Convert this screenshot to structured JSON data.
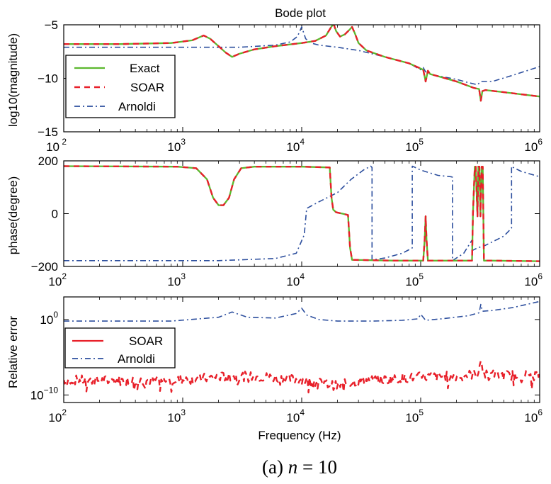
{
  "figure": {
    "caption_prefix": "(a)",
    "caption_var": "n",
    "caption_eq": "=",
    "caption_value": "10"
  },
  "colors": {
    "exact": "#5cb82e",
    "soar": "#e8202a",
    "arnoldi": "#2d4f9e",
    "axes": "#000000"
  },
  "chart_data": [
    {
      "type": "line",
      "title": "Bode plot",
      "xlabel": "",
      "ylabel": "log10(magnitude)",
      "x_scale": "log",
      "xlim": [
        100,
        1000000
      ],
      "ylim": [
        -15,
        -5
      ],
      "x_ticks": [
        {
          "value": 100,
          "base": "10",
          "exp": " 2"
        },
        {
          "value": 1000,
          "base": "10",
          "exp": "3"
        },
        {
          "value": 10000,
          "base": "10",
          "exp": "4"
        },
        {
          "value": 100000,
          "base": "10",
          "exp": "5"
        },
        {
          "value": 1000000,
          "base": "10",
          "exp": "6"
        }
      ],
      "y_ticks": [
        {
          "value": -5,
          "label": "−5"
        },
        {
          "value": -10,
          "label": "−10"
        },
        {
          "value": -15,
          "label": "−15"
        }
      ],
      "legend": {
        "position": "middle-left",
        "entries": [
          "Exact",
          "SOAR",
          "Arnoldi"
        ]
      },
      "series": [
        {
          "name": "Exact",
          "style": "solid",
          "x": [
            100,
            300,
            800,
            1200,
            1500,
            1700,
            2000,
            2300,
            2600,
            3000,
            4000,
            6000,
            10000,
            13000,
            16000,
            17500,
            18500,
            19500,
            21000,
            23000,
            25000,
            26500,
            28000,
            30000,
            35000,
            50000,
            80000,
            105000,
            110000,
            115000,
            120000,
            150000,
            200000,
            280000,
            310000,
            320000,
            330000,
            350000,
            500000,
            1000000
          ],
          "y": [
            -6.8,
            -6.8,
            -6.7,
            -6.45,
            -6.0,
            -6.3,
            -7.0,
            -7.6,
            -8.0,
            -7.7,
            -7.3,
            -7.0,
            -6.7,
            -6.5,
            -6.0,
            -5.3,
            -4.9,
            -5.6,
            -6.1,
            -5.9,
            -5.5,
            -5.2,
            -5.8,
            -6.7,
            -7.4,
            -8.0,
            -8.6,
            -9.2,
            -10.3,
            -9.3,
            -9.6,
            -9.9,
            -10.3,
            -10.9,
            -11.0,
            -12.1,
            -11.2,
            -11.1,
            -11.3,
            -11.7
          ]
        },
        {
          "name": "SOAR",
          "style": "dashed",
          "x": [
            100,
            300,
            800,
            1200,
            1500,
            1700,
            2000,
            2300,
            2600,
            3000,
            4000,
            6000,
            10000,
            13000,
            16000,
            17500,
            18500,
            19500,
            21000,
            23000,
            25000,
            26500,
            28000,
            30000,
            35000,
            50000,
            80000,
            105000,
            110000,
            115000,
            120000,
            150000,
            200000,
            280000,
            310000,
            320000,
            330000,
            350000,
            500000,
            1000000
          ],
          "y": [
            -6.8,
            -6.8,
            -6.7,
            -6.45,
            -6.0,
            -6.3,
            -7.0,
            -7.6,
            -8.0,
            -7.7,
            -7.3,
            -7.0,
            -6.7,
            -6.5,
            -6.0,
            -5.3,
            -4.9,
            -5.6,
            -6.1,
            -5.9,
            -5.5,
            -5.2,
            -5.8,
            -6.7,
            -7.4,
            -8.0,
            -8.6,
            -9.2,
            -10.3,
            -9.3,
            -9.6,
            -9.9,
            -10.3,
            -10.9,
            -11.0,
            -12.1,
            -11.2,
            -11.1,
            -11.3,
            -11.7
          ]
        },
        {
          "name": "Arnoldi",
          "style": "dashdot",
          "x": [
            100,
            1000,
            3000,
            6000,
            8000,
            9200,
            10000,
            10800,
            12000,
            14000,
            20000,
            30000,
            50000,
            80000,
            100000,
            105000,
            110000,
            130000,
            200000,
            250000,
            300000,
            320000,
            400000,
            600000,
            1000000
          ],
          "y": [
            -7.1,
            -7.1,
            -7.1,
            -6.9,
            -6.6,
            -6.1,
            -5.2,
            -6.3,
            -6.7,
            -6.9,
            -7.1,
            -7.4,
            -8.0,
            -8.6,
            -9.2,
            -9.0,
            -9.4,
            -9.7,
            -10.1,
            -10.4,
            -10.6,
            -10.3,
            -10.3,
            -9.7,
            -8.9
          ]
        }
      ]
    },
    {
      "type": "line",
      "title": "",
      "xlabel": "",
      "ylabel": "phase(degree)",
      "x_scale": "log",
      "xlim": [
        100,
        1000000
      ],
      "ylim": [
        -200,
        200
      ],
      "x_ticks": [
        {
          "value": 100,
          "base": "10",
          "exp": "2"
        },
        {
          "value": 1000,
          "base": "10",
          "exp": "3"
        },
        {
          "value": 10000,
          "base": "10",
          "exp": "4"
        },
        {
          "value": 100000,
          "base": "10",
          "exp": "5"
        },
        {
          "value": 1000000,
          "base": "10",
          "exp": "6"
        }
      ],
      "y_ticks": [
        {
          "value": 200,
          "label": "200"
        },
        {
          "value": 0,
          "label": "0"
        },
        {
          "value": -200,
          "label": "−200"
        }
      ],
      "series": [
        {
          "name": "Exact",
          "style": "solid",
          "x": [
            100,
            900,
            1300,
            1600,
            1800,
            2000,
            2200,
            2450,
            2700,
            3100,
            4000,
            10000,
            17200,
            17800,
            18400,
            19500,
            22000,
            24500,
            25500,
            26500,
            60000,
            105000,
            108000,
            110000,
            112000,
            115000,
            200000,
            270000,
            275000,
            285000,
            290000,
            300000,
            305000,
            312000,
            318000,
            326000,
            332000,
            340000,
            400000,
            1000000
          ],
          "y": [
            180,
            178,
            172,
            130,
            60,
            32,
            32,
            60,
            130,
            172,
            178,
            178,
            175,
            60,
            15,
            5,
            0,
            -5,
            -130,
            -175,
            -178,
            -178,
            -100,
            -10,
            -100,
            -178,
            -178,
            -178,
            0,
            178,
            178,
            -10,
            178,
            178,
            -10,
            178,
            178,
            -178,
            -178,
            -180
          ]
        },
        {
          "name": "SOAR",
          "style": "dashed",
          "x": [
            100,
            900,
            1300,
            1600,
            1800,
            2000,
            2200,
            2450,
            2700,
            3100,
            4000,
            10000,
            17200,
            17800,
            18400,
            19500,
            22000,
            24500,
            25500,
            26500,
            60000,
            105000,
            108000,
            110000,
            112000,
            115000,
            200000,
            270000,
            275000,
            285000,
            290000,
            300000,
            305000,
            312000,
            318000,
            326000,
            332000,
            340000,
            400000,
            1000000
          ],
          "y": [
            180,
            178,
            172,
            130,
            60,
            32,
            32,
            60,
            130,
            172,
            178,
            178,
            175,
            60,
            15,
            5,
            0,
            -5,
            -130,
            -175,
            -178,
            -178,
            -100,
            -10,
            -100,
            -178,
            -178,
            -178,
            0,
            178,
            178,
            -10,
            178,
            178,
            -10,
            178,
            178,
            -178,
            -178,
            -180
          ]
        },
        {
          "name": "Arnoldi",
          "style": "dashdot",
          "x": [
            100,
            2000,
            6000,
            9000,
            10500,
            11000,
            14000,
            20000,
            26000,
            33000,
            38000,
            39000,
            39000,
            50000,
            70000,
            85000,
            85000,
            90000,
            100000,
            140000,
            180000,
            185000,
            185000,
            230000,
            270000,
            270000,
            300000,
            350000,
            500000,
            580000,
            580000,
            600000,
            700000,
            1000000
          ],
          "y": [
            -178,
            -178,
            -170,
            -150,
            -80,
            20,
            45,
            80,
            130,
            165,
            180,
            175,
            -175,
            -168,
            -150,
            -130,
            180,
            175,
            165,
            145,
            140,
            138,
            -178,
            -150,
            -100,
            -140,
            -130,
            -120,
            -85,
            -55,
            180,
            175,
            160,
            140
          ]
        }
      ]
    },
    {
      "type": "line",
      "title": "",
      "xlabel": "Frequency (Hz)",
      "ylabel": "Relative error",
      "x_scale": "log",
      "y_scale": "log",
      "xlim": [
        100,
        1000000
      ],
      "ylim_log10": [
        -11,
        3
      ],
      "x_ticks": [
        {
          "value": 100,
          "base": "10",
          "exp": "2"
        },
        {
          "value": 1000,
          "base": "10",
          "exp": "3"
        },
        {
          "value": 10000,
          "base": "10",
          "exp": "4"
        },
        {
          "value": 100000,
          "base": "10",
          "exp": "5"
        },
        {
          "value": 1000000,
          "base": "10",
          "exp": "6"
        }
      ],
      "y_ticks": [
        {
          "log10": 0,
          "base": "10",
          "exp": "0"
        },
        {
          "log10": -10,
          "base": "10",
          "exp": "−10"
        }
      ],
      "legend": {
        "position": "upper-left",
        "entries": [
          "SOAR",
          "Arnoldi"
        ]
      },
      "series": [
        {
          "name": "SOAR",
          "style": "solid",
          "noisy": true,
          "x": [
            100,
            300,
            1000,
            2500,
            5000,
            10000,
            14000,
            20000,
            25000,
            30000,
            60000,
            100000,
            200000,
            300000,
            320000,
            340000,
            500000,
            1000000
          ],
          "log10_y": [
            -8.0,
            -8.1,
            -8.0,
            -7.5,
            -7.6,
            -8.0,
            -8.4,
            -8.8,
            -8.4,
            -8.1,
            -7.9,
            -7.6,
            -7.5,
            -7.2,
            -5.5,
            -7.3,
            -7.4,
            -7.3
          ]
        },
        {
          "name": "Arnoldi",
          "style": "dashdot",
          "x": [
            100,
            800,
            2000,
            2600,
            3500,
            6000,
            9000,
            10000,
            11000,
            14000,
            20000,
            40000,
            70000,
            95000,
            100000,
            110000,
            150000,
            250000,
            310000,
            320000,
            330000,
            400000,
            600000,
            1000000
          ],
          "log10_y": [
            -0.2,
            -0.2,
            0.3,
            1.0,
            0.3,
            0.2,
            0.8,
            1.5,
            0.6,
            0.0,
            -0.2,
            -0.2,
            -0.1,
            0.1,
            0.7,
            -0.1,
            0.1,
            0.5,
            0.9,
            2.0,
            1.1,
            1.2,
            1.6,
            2.4
          ]
        }
      ]
    }
  ]
}
